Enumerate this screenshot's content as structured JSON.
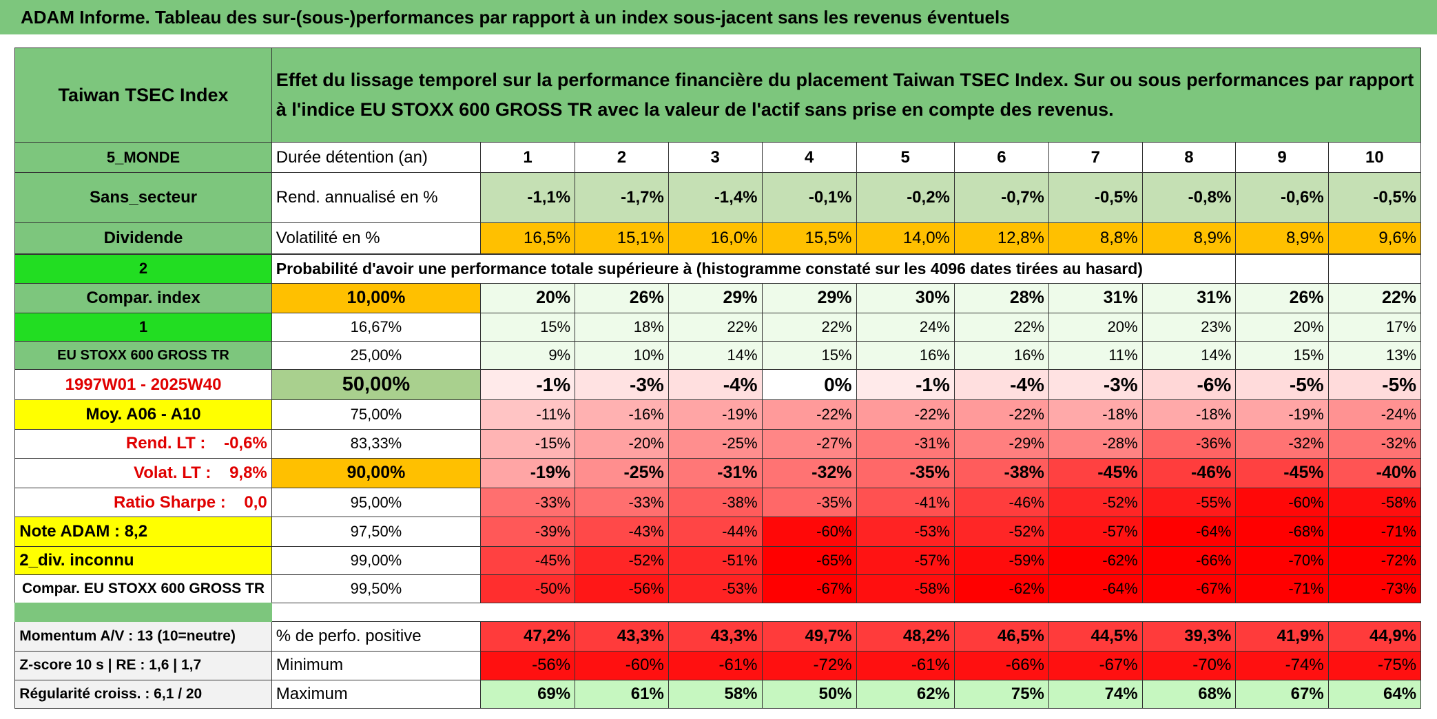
{
  "title": "ADAM Informe. Tableau des sur-(sous-)performances par rapport à un index sous-jacent sans les revenus éventuels",
  "table": {
    "header": [
      "Taiwan TSEC Index",
      "Effet du lissage temporel sur la performance financière du placement Taiwan TSEC Index. Sur ou sous performances par rapport à l'indice EU STOXX 600 GROSS TR avec la valeur de l'actif sans prise en compte des revenus."
    ],
    "rows": [
      [
        "5_MONDE",
        "Durée détention (an)",
        "1",
        "2",
        "3",
        "4",
        "5",
        "6",
        "7",
        "8",
        "9",
        "10"
      ],
      [
        "Sans_secteur",
        "Rend. annualisé en %",
        "-1,1%",
        "-1,7%",
        "-1,4%",
        "-0,1%",
        "-0,2%",
        "-0,7%",
        "-0,5%",
        "-0,8%",
        "-0,6%",
        "-0,5%"
      ],
      [
        "Dividende",
        "Volatilité en %",
        "16,5%",
        "15,1%",
        "16,0%",
        "15,5%",
        "14,0%",
        "12,8%",
        "8,8%",
        "8,9%",
        "8,9%",
        "9,6%"
      ],
      [
        "2",
        "Probabilité d'avoir une performance totale supérieure à (histogramme constaté sur les 4096 dates tirées au hasard)"
      ],
      [
        "Compar. index",
        "10,00%",
        "20%",
        "26%",
        "29%",
        "29%",
        "30%",
        "28%",
        "31%",
        "31%",
        "26%",
        "22%"
      ],
      [
        "1",
        "16,67%",
        "15%",
        "18%",
        "22%",
        "22%",
        "24%",
        "22%",
        "20%",
        "23%",
        "20%",
        "17%"
      ],
      [
        "EU STOXX 600 GROSS TR",
        "25,00%",
        "9%",
        "10%",
        "14%",
        "15%",
        "16%",
        "16%",
        "11%",
        "14%",
        "15%",
        "13%"
      ],
      [
        "1997W01 - 2025W40",
        "50,00%",
        "-1%",
        "-3%",
        "-4%",
        "0%",
        "-1%",
        "-4%",
        "-3%",
        "-6%",
        "-5%",
        "-5%"
      ],
      [
        "Moy. A06 - A10",
        "75,00%",
        "-11%",
        "-16%",
        "-19%",
        "-22%",
        "-22%",
        "-22%",
        "-18%",
        "-18%",
        "-19%",
        "-24%"
      ],
      [
        "Rend. LT :    -0,6%",
        "83,33%",
        "-15%",
        "-20%",
        "-25%",
        "-27%",
        "-31%",
        "-29%",
        "-28%",
        "-36%",
        "-32%",
        "-32%"
      ],
      [
        "Volat. LT :    9,8%",
        "90,00%",
        "-19%",
        "-25%",
        "-31%",
        "-32%",
        "-35%",
        "-38%",
        "-45%",
        "-46%",
        "-45%",
        "-40%"
      ],
      [
        "Ratio Sharpe :    0,0",
        "95,00%",
        "-33%",
        "-33%",
        "-38%",
        "-35%",
        "-41%",
        "-46%",
        "-52%",
        "-55%",
        "-60%",
        "-58%"
      ],
      [
        "Note ADAM : 8,2",
        "97,50%",
        "-39%",
        "-43%",
        "-44%",
        "-60%",
        "-53%",
        "-52%",
        "-57%",
        "-64%",
        "-68%",
        "-71%"
      ],
      [
        "2_div. inconnu",
        "99,00%",
        "-45%",
        "-52%",
        "-51%",
        "-65%",
        "-57%",
        "-59%",
        "-62%",
        "-66%",
        "-70%",
        "-72%"
      ],
      [
        "Compar. EU STOXX 600 GROSS TR",
        "99,50%",
        "-50%",
        "-56%",
        "-53%",
        "-67%",
        "-58%",
        "-62%",
        "-64%",
        "-67%",
        "-71%",
        "-73%"
      ],
      [
        "Momentum A/V : 13 (10=neutre)",
        "% de perfo. positive",
        "47,2%",
        "43,3%",
        "43,3%",
        "49,7%",
        "48,2%",
        "46,5%",
        "44,5%",
        "39,3%",
        "41,9%",
        "44,9%"
      ],
      [
        "Z-score 10 s | RE : 1,6 | 1,7",
        "Minimum",
        "-56%",
        "-60%",
        "-61%",
        "-72%",
        "-61%",
        "-66%",
        "-67%",
        "-70%",
        "-74%",
        "-75%"
      ],
      [
        "Régularité croiss. : 6,1 / 20",
        "Maximum",
        "69%",
        "61%",
        "58%",
        "50%",
        "62%",
        "75%",
        "74%",
        "68%",
        "67%",
        "64%"
      ]
    ]
  }
}
